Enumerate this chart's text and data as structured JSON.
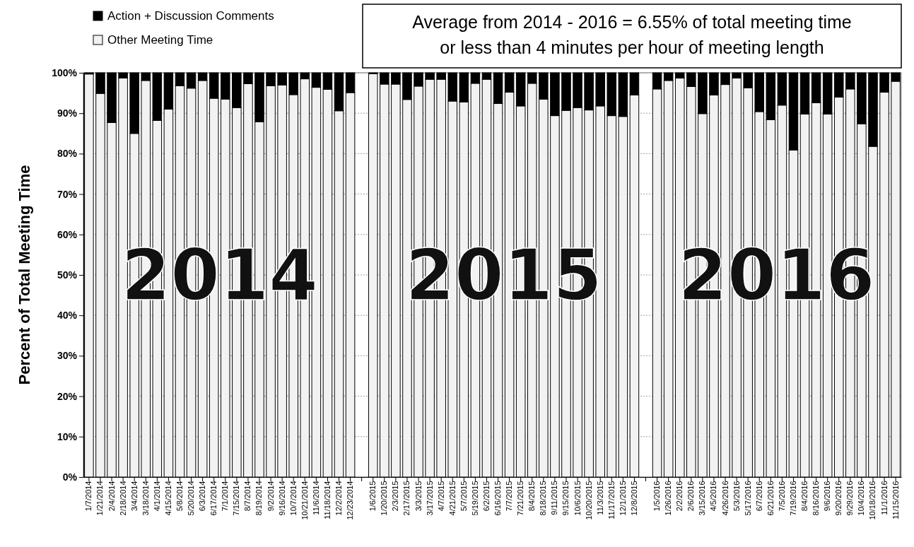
{
  "chart_data": {
    "type": "bar",
    "stacked": true,
    "ylabel": "Percent of Total Meeting Time",
    "categories": [
      "1/7/2014",
      "1/21/2014",
      "2/4/2014",
      "2/18/2014",
      "3/4/2014",
      "3/18/2014",
      "4/1/2014",
      "4/15/2014",
      "5/8/2014",
      "5/20/2014",
      "6/3/2014",
      "6/17/2014",
      "7/1/2014",
      "7/15/2014",
      "8/7/2014",
      "8/19/2014",
      "9/2/2014",
      "9/16/2014",
      "10/7/2014",
      "10/21/2014",
      "11/6/2014",
      "11/18/2014",
      "12/2/2014",
      "12/23/2014",
      null,
      "1/6/2015",
      "1/20/2015",
      "2/3/2015",
      "2/17/2015",
      "3/3/2015",
      "3/17/2015",
      "4/7/2015",
      "4/21/2015",
      "5/7/2015",
      "5/19/2015",
      "6/2/2015",
      "6/16/2015",
      "7/7/2015",
      "7/21/2015",
      "8/4/2015",
      "8/18/2015",
      "9/11/2015",
      "9/15/2015",
      "10/6/2015",
      "10/20/2015",
      "11/3/2015",
      "11/17/2015",
      "12/1/2015",
      "12/8/2015",
      null,
      "1/5/2016",
      "1/26/2016",
      "2/2/2016",
      "2/6/2016",
      "3/15/2016",
      "4/5/2016",
      "4/26/2016",
      "5/3/2016",
      "5/17/2016",
      "6/7/2016",
      "6/21/2016",
      "7/5/2016",
      "7/19/2016",
      "8/4/2016",
      "8/16/2016",
      "9/6/2016",
      "9/20/2016",
      "9/29/2016",
      "10/4/2016",
      "10/18/2016",
      "11/1/2016",
      "11/15/2016"
    ],
    "series": [
      {
        "name": "Other Meeting Time",
        "color": "#f2f2f2",
        "values": [
          99.7,
          94.9,
          87.7,
          98.7,
          85.0,
          98.1,
          88.2,
          91.0,
          96.8,
          96.2,
          98.1,
          93.7,
          93.5,
          91.4,
          97.3,
          87.9,
          96.8,
          97.0,
          94.6,
          98.5,
          96.4,
          95.9,
          90.6,
          95.1,
          null,
          99.8,
          97.2,
          97.2,
          93.4,
          96.7,
          98.4,
          98.4,
          93.0,
          92.8,
          97.4,
          98.4,
          92.4,
          95.2,
          91.8,
          97.4,
          93.5,
          89.4,
          90.7,
          91.4,
          90.8,
          91.8,
          89.4,
          89.2,
          94.5,
          null,
          96.0,
          98.1,
          98.7,
          96.6,
          89.9,
          94.5,
          97.1,
          98.7,
          96.3,
          90.4,
          88.4,
          92.0,
          80.9,
          89.8,
          92.6,
          89.8,
          94.0,
          96.0,
          87.4,
          81.8,
          95.2,
          97.9
        ]
      },
      {
        "name": "Action + Discussion Comments",
        "color": "#000000",
        "values": [
          0.3,
          5.1,
          12.3,
          1.3,
          15.0,
          1.9,
          11.8,
          9.0,
          3.2,
          3.8,
          1.9,
          6.3,
          6.5,
          8.6,
          2.7,
          12.1,
          3.2,
          3.0,
          5.4,
          1.5,
          3.6,
          4.1,
          9.4,
          4.9,
          null,
          0.2,
          2.8,
          2.8,
          6.6,
          3.3,
          1.6,
          1.6,
          7.0,
          7.2,
          2.6,
          1.6,
          7.6,
          4.8,
          8.2,
          2.6,
          6.5,
          10.6,
          9.3,
          8.6,
          9.2,
          8.2,
          10.6,
          10.8,
          5.5,
          null,
          4.0,
          1.9,
          1.3,
          3.4,
          10.1,
          5.5,
          2.9,
          1.3,
          3.7,
          9.6,
          11.6,
          8.0,
          19.1,
          10.2,
          7.4,
          10.2,
          6.0,
          4.0,
          12.6,
          18.2,
          4.8,
          2.1
        ]
      }
    ],
    "ylim": [
      0,
      100
    ],
    "yticks": [
      {
        "value": 0,
        "label": "0%"
      },
      {
        "value": 10,
        "label": "10%"
      },
      {
        "value": 20,
        "label": "20%"
      },
      {
        "value": 30,
        "label": "30%"
      },
      {
        "value": 40,
        "label": "40%"
      },
      {
        "value": 50,
        "label": "50%"
      },
      {
        "value": 60,
        "label": "60%"
      },
      {
        "value": 70,
        "label": "70%"
      },
      {
        "value": 80,
        "label": "80%"
      },
      {
        "value": 90,
        "label": "90%"
      },
      {
        "value": 100,
        "label": "100%"
      }
    ],
    "grid": "y",
    "legend": "top left",
    "annotations": [
      "Average from 2014 - 2016 = 6.55% of  total meeting time",
      "or less than 4 minutes per hour of meeting length",
      "2014",
      "2015",
      "2016"
    ]
  }
}
